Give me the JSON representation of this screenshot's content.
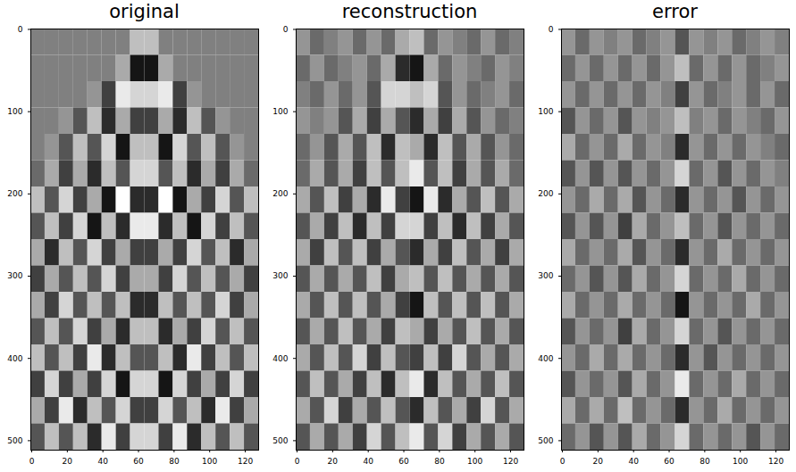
{
  "chart_data": [
    {
      "type": "heatmap",
      "title": "original",
      "color": "gray",
      "xlim": [
        -0.5,
        127.5
      ],
      "ylim": [
        511.5,
        -0.5
      ],
      "xticks": [
        0,
        20,
        40,
        60,
        80,
        100,
        120
      ],
      "yticks": [
        0,
        100,
        200,
        300,
        400,
        500
      ],
      "vlim": [
        -6,
        6
      ],
      "cells": [
        [
          0,
          0,
          0,
          0,
          0,
          0,
          0,
          3,
          3,
          0,
          0,
          0,
          0,
          0,
          0,
          0
        ],
        [
          0,
          0,
          0,
          0,
          0,
          0,
          2,
          -5,
          -5,
          2,
          0,
          0,
          0,
          0,
          0,
          0
        ],
        [
          0,
          0,
          0,
          0,
          1,
          -3,
          5,
          4,
          4,
          5,
          -3,
          1,
          0,
          0,
          0,
          0
        ],
        [
          0,
          0,
          1,
          -2,
          3,
          -4,
          2,
          -3,
          -3,
          2,
          -4,
          3,
          -2,
          1,
          0,
          0
        ],
        [
          0,
          1,
          -2,
          3,
          -2,
          4,
          -5,
          3,
          3,
          -5,
          4,
          -2,
          3,
          -2,
          1,
          0
        ],
        [
          -1,
          2,
          -3,
          2,
          -4,
          3,
          -2,
          4,
          4,
          -2,
          3,
          -4,
          2,
          -3,
          2,
          -1
        ],
        [
          3,
          -2,
          4,
          -3,
          2,
          -5,
          6,
          -4,
          -4,
          6,
          -5,
          2,
          -3,
          4,
          -2,
          3
        ],
        [
          -2,
          3,
          -3,
          4,
          -5,
          3,
          -4,
          5,
          5,
          -4,
          3,
          -5,
          4,
          -3,
          3,
          -2
        ],
        [
          2,
          -4,
          3,
          -2,
          4,
          -3,
          2,
          -3,
          -3,
          2,
          -3,
          4,
          -2,
          3,
          -4,
          2
        ],
        [
          -3,
          2,
          -2,
          3,
          -2,
          4,
          -3,
          2,
          2,
          -3,
          4,
          -2,
          3,
          -2,
          2,
          -3
        ],
        [
          2,
          -3,
          4,
          -2,
          3,
          -2,
          3,
          -4,
          -4,
          3,
          -2,
          3,
          -2,
          4,
          -3,
          2
        ],
        [
          -2,
          3,
          -2,
          4,
          -3,
          2,
          -4,
          3,
          3,
          -4,
          2,
          -3,
          4,
          -2,
          3,
          -2
        ],
        [
          3,
          -2,
          3,
          -3,
          5,
          -4,
          3,
          -2,
          -2,
          3,
          -4,
          5,
          -3,
          3,
          -2,
          3
        ],
        [
          -3,
          4,
          -3,
          2,
          -3,
          4,
          -5,
          4,
          4,
          -5,
          4,
          -3,
          2,
          -3,
          4,
          -3
        ],
        [
          2,
          -3,
          5,
          -4,
          3,
          -2,
          4,
          -3,
          -3,
          4,
          -2,
          3,
          -4,
          5,
          -3,
          2
        ],
        [
          -2,
          3,
          -2,
          3,
          -4,
          5,
          -3,
          4,
          4,
          -3,
          5,
          -4,
          3,
          -2,
          3,
          -2
        ]
      ]
    },
    {
      "type": "heatmap",
      "title": "reconstruction",
      "color": "gray",
      "xlim": [
        -0.5,
        127.5
      ],
      "ylim": [
        511.5,
        -0.5
      ],
      "xticks": [
        0,
        20,
        40,
        60,
        80,
        100,
        120
      ],
      "yticks": [
        0,
        100,
        200,
        300,
        400,
        500
      ],
      "vlim": [
        -6,
        6
      ],
      "cells": [
        [
          1,
          -1,
          0,
          1,
          -1,
          1,
          -1,
          2,
          3,
          -1,
          1,
          0,
          -1,
          1,
          -1,
          0
        ],
        [
          -1,
          1,
          -1,
          0,
          1,
          -1,
          2,
          -4,
          -5,
          2,
          -1,
          1,
          0,
          -1,
          1,
          0
        ],
        [
          0,
          -1,
          1,
          -1,
          1,
          -2,
          4,
          4,
          3,
          4,
          -2,
          1,
          -1,
          0,
          1,
          -1
        ],
        [
          1,
          0,
          1,
          -2,
          2,
          -3,
          2,
          -2,
          -4,
          2,
          -3,
          2,
          -2,
          1,
          -1,
          0
        ],
        [
          -1,
          1,
          -2,
          2,
          -2,
          3,
          -4,
          3,
          2,
          -4,
          3,
          -2,
          2,
          -2,
          1,
          -1
        ],
        [
          -1,
          2,
          -2,
          2,
          -3,
          3,
          -2,
          3,
          5,
          -2,
          3,
          -3,
          2,
          -2,
          2,
          -1
        ],
        [
          2,
          -2,
          3,
          -3,
          2,
          -4,
          5,
          -3,
          -5,
          5,
          -4,
          2,
          -2,
          3,
          -2,
          2
        ],
        [
          -2,
          2,
          -3,
          3,
          -4,
          3,
          -3,
          4,
          4,
          -3,
          3,
          -4,
          3,
          -3,
          2,
          -2
        ],
        [
          2,
          -3,
          3,
          -2,
          3,
          -3,
          2,
          -2,
          -4,
          2,
          -3,
          3,
          -2,
          2,
          -3,
          2
        ],
        [
          -2,
          2,
          -2,
          2,
          -2,
          3,
          -3,
          2,
          3,
          -2,
          3,
          -2,
          2,
          -2,
          2,
          -2
        ],
        [
          2,
          -2,
          3,
          -2,
          3,
          -2,
          2,
          -3,
          -5,
          3,
          -2,
          3,
          -2,
          3,
          -2,
          2
        ],
        [
          -2,
          2,
          -2,
          3,
          -2,
          2,
          -3,
          3,
          2,
          -3,
          2,
          -2,
          3,
          -2,
          2,
          -2
        ],
        [
          2,
          -2,
          3,
          -2,
          4,
          -3,
          3,
          -2,
          -3,
          3,
          -3,
          4,
          -2,
          2,
          -2,
          2
        ],
        [
          -2,
          3,
          -2,
          2,
          -3,
          3,
          -4,
          3,
          5,
          -4,
          3,
          -2,
          2,
          -2,
          3,
          -2
        ],
        [
          2,
          -2,
          4,
          -3,
          2,
          -2,
          3,
          -2,
          -4,
          3,
          -2,
          2,
          -3,
          4,
          -2,
          2
        ],
        [
          -2,
          2,
          -2,
          2,
          -3,
          4,
          -2,
          3,
          5,
          -2,
          4,
          -3,
          2,
          -2,
          2,
          -2
        ]
      ]
    },
    {
      "type": "heatmap",
      "title": "error",
      "color": "gray",
      "xlim": [
        -0.5,
        127.5
      ],
      "ylim": [
        511.5,
        -0.5
      ],
      "xticks": [
        0,
        20,
        40,
        60,
        80,
        100,
        120
      ],
      "yticks": [
        0,
        100,
        200,
        300,
        400,
        500
      ],
      "vlim": [
        -6,
        6
      ],
      "cells": [
        [
          1,
          -1,
          1,
          0,
          1,
          -1,
          0,
          1,
          -2,
          1,
          0,
          1,
          -1,
          0,
          1,
          0
        ],
        [
          -1,
          1,
          -1,
          1,
          -1,
          1,
          -1,
          1,
          3,
          -1,
          1,
          -1,
          1,
          -1,
          0,
          1
        ],
        [
          1,
          -1,
          1,
          -1,
          1,
          -1,
          1,
          0,
          -3,
          1,
          -1,
          0,
          1,
          -1,
          1,
          -1
        ],
        [
          -2,
          1,
          -1,
          1,
          -2,
          1,
          0,
          1,
          3,
          0,
          1,
          -1,
          1,
          0,
          -1,
          1
        ],
        [
          2,
          -1,
          1,
          -1,
          2,
          -1,
          1,
          0,
          -4,
          1,
          -1,
          1,
          -1,
          1,
          0,
          -1
        ],
        [
          -2,
          1,
          -2,
          1,
          -2,
          1,
          -1,
          1,
          4,
          -1,
          1,
          -2,
          1,
          -1,
          1,
          0
        ],
        [
          1,
          -1,
          2,
          -1,
          2,
          -2,
          1,
          -1,
          -4,
          1,
          -1,
          1,
          -2,
          1,
          -1,
          1
        ],
        [
          -2,
          1,
          -2,
          1,
          -3,
          2,
          -1,
          1,
          3,
          -1,
          1,
          -2,
          1,
          -1,
          1,
          -1
        ],
        [
          2,
          -1,
          1,
          -1,
          2,
          -2,
          1,
          -1,
          -4,
          1,
          -1,
          2,
          -1,
          1,
          -1,
          1
        ],
        [
          -1,
          1,
          -2,
          1,
          -2,
          2,
          -1,
          1,
          4,
          -1,
          1,
          -1,
          2,
          -1,
          1,
          -1
        ],
        [
          2,
          -1,
          1,
          -1,
          2,
          -1,
          1,
          -1,
          -5,
          1,
          -1,
          1,
          -1,
          2,
          -1,
          1
        ],
        [
          -2,
          1,
          -1,
          1,
          -3,
          2,
          -1,
          1,
          4,
          -1,
          1,
          -2,
          1,
          -1,
          1,
          -1
        ],
        [
          1,
          -1,
          2,
          -1,
          2,
          -1,
          1,
          -1,
          -4,
          1,
          -2,
          1,
          -1,
          1,
          -1,
          1
        ],
        [
          -2,
          1,
          -1,
          1,
          -2,
          2,
          -1,
          1,
          5,
          -1,
          1,
          -1,
          2,
          -1,
          1,
          -1
        ],
        [
          2,
          -1,
          2,
          -1,
          3,
          -1,
          1,
          -1,
          -4,
          1,
          -1,
          2,
          -1,
          1,
          -1,
          1
        ],
        [
          -1,
          1,
          -2,
          1,
          -2,
          2,
          -1,
          1,
          4,
          -1,
          1,
          -1,
          1,
          -2,
          1,
          -1
        ]
      ]
    }
  ]
}
